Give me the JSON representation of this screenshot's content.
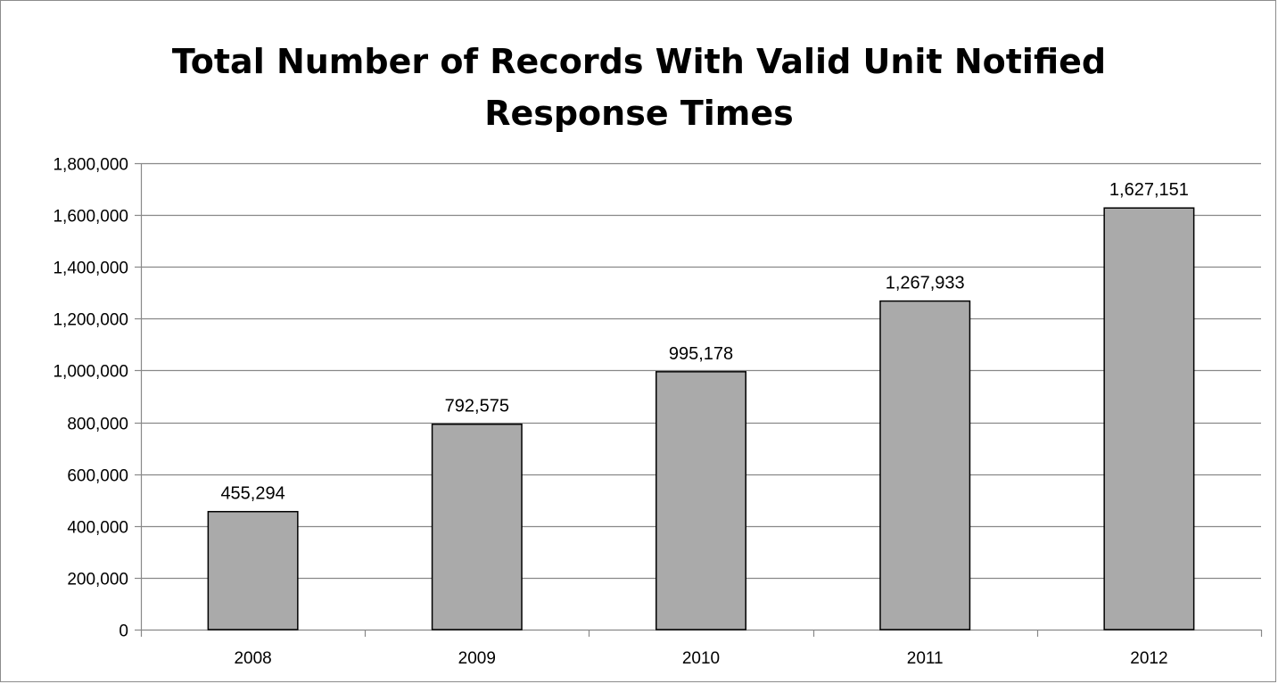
{
  "chart_data": {
    "type": "bar",
    "title_lines": [
      "Total Number of Records With Valid Unit Notified",
      "Response Times"
    ],
    "categories": [
      "2008",
      "2009",
      "2010",
      "2011",
      "2012"
    ],
    "values": [
      455294,
      792575,
      995178,
      1267933,
      1627151
    ],
    "data_labels": [
      "455,294",
      "792,575",
      "995,178",
      "1,267,933",
      "1,627,151"
    ],
    "y_ticks": [
      0,
      200000,
      400000,
      600000,
      800000,
      1000000,
      1200000,
      1400000,
      1600000,
      1800000
    ],
    "y_tick_labels": [
      "0",
      "200,000",
      "400,000",
      "600,000",
      "800,000",
      "1,000,000",
      "1,200,000",
      "1,400,000",
      "1,600,000",
      "1,800,000"
    ],
    "ylim": [
      0,
      1800000
    ],
    "grid": true,
    "legend": "none",
    "bar_color": "#aaaaaa",
    "bar_edge_color": "#000000",
    "grid_color": "#888888"
  }
}
